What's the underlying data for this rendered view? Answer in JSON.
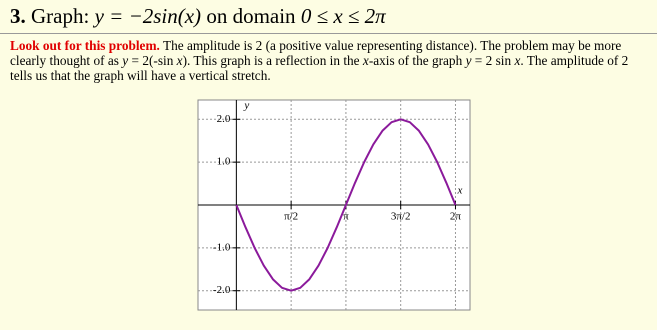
{
  "header": {
    "number": "3.",
    "label": "Graph:",
    "equation": "y = −2sin(x)",
    "domain_text": "on domain",
    "domain": "0 ≤ x ≤ 2π"
  },
  "paragraph": {
    "warning": "Look out for this problem.",
    "text": [
      " The amplitude is 2 (a positive value representing distance).  The problem may be more clearly thought of as ",
      "y",
      " = 2(-sin ",
      "x",
      ").  This graph is a reflection in the ",
      "x",
      "-axis of the graph  ",
      "y",
      " = 2 sin ",
      "x",
      ".  The amplitude of 2 tells us that the graph will have a vertical stretch."
    ]
  },
  "chart_data": {
    "type": "line",
    "xlabel": "x",
    "ylabel": "y",
    "color": "#8b1a9b",
    "grid": true,
    "x": [
      0,
      0.2618,
      0.5236,
      0.7854,
      1.0472,
      1.309,
      1.5708,
      1.8326,
      2.0944,
      2.3562,
      2.618,
      2.8798,
      3.1416,
      3.4034,
      3.6652,
      3.927,
      4.1888,
      4.4506,
      4.7124,
      4.9742,
      5.236,
      5.4978,
      5.7596,
      6.0214,
      6.2832
    ],
    "values": [
      0,
      -0.518,
      -1,
      -1.414,
      -1.732,
      -1.932,
      -2,
      -1.932,
      -1.732,
      -1.414,
      -1,
      -0.518,
      0,
      0.518,
      1,
      1.414,
      1.732,
      1.932,
      2,
      1.932,
      1.732,
      1.414,
      1,
      0.518,
      0
    ],
    "xlim": [
      -1.1,
      6.7
    ],
    "ylim": [
      -2.45,
      2.45
    ],
    "xticks": [
      {
        "value": 1.5708,
        "label": "π/2"
      },
      {
        "value": 3.1416,
        "label": "π"
      },
      {
        "value": 4.7124,
        "label": "3π/2"
      },
      {
        "value": 6.2832,
        "label": "2π"
      }
    ],
    "yticks": [
      {
        "value": 2,
        "label": "2.0"
      },
      {
        "value": 1,
        "label": "1.0"
      },
      {
        "value": -1,
        "label": "-1.0"
      },
      {
        "value": -2,
        "label": "-2.0"
      }
    ]
  }
}
